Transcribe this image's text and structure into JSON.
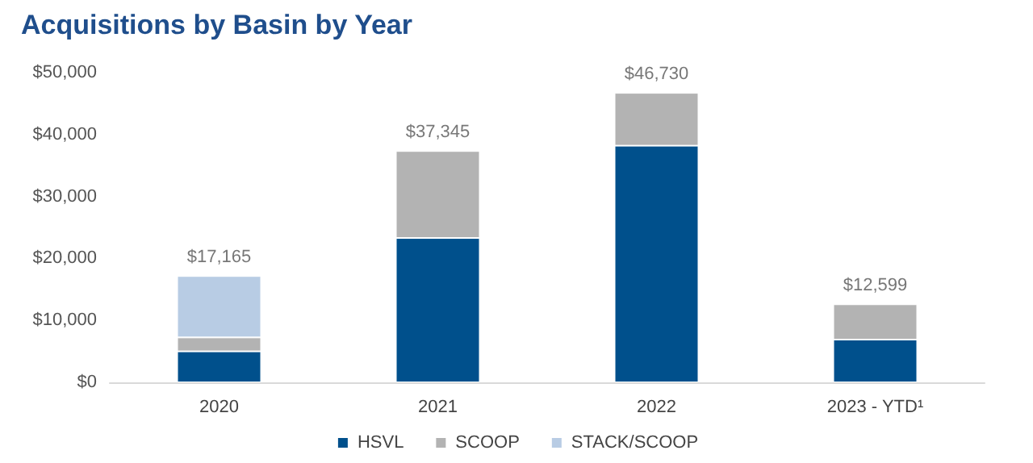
{
  "chart_data": {
    "type": "bar",
    "title": "Acquisitions by Basin by Year",
    "stacked": true,
    "categories": [
      "2020",
      "2021",
      "2022",
      "2023 - YTD¹"
    ],
    "series": [
      {
        "name": "HSVL",
        "color": "#00508c",
        "values": [
          5000,
          23300,
          38200,
          6900
        ]
      },
      {
        "name": "SCOOP",
        "color": "#b3b3b3",
        "values": [
          2250,
          14045,
          8530,
          5699
        ]
      },
      {
        "name": "STACK/SCOOP",
        "color": "#b8cce4",
        "values": [
          9915,
          null,
          null,
          null
        ]
      }
    ],
    "totals": [
      "$17,165",
      "$37,345",
      "$46,730",
      "$12,599"
    ],
    "ylim": [
      0,
      50000
    ],
    "yticks": [
      {
        "value": 0,
        "label": "$0"
      },
      {
        "value": 10000,
        "label": "$10,000"
      },
      {
        "value": 20000,
        "label": "$20,000"
      },
      {
        "value": 30000,
        "label": "$30,000"
      },
      {
        "value": 40000,
        "label": "$40,000"
      },
      {
        "value": 50000,
        "label": "$50,000"
      }
    ],
    "grid": false,
    "legend": "bottom"
  }
}
